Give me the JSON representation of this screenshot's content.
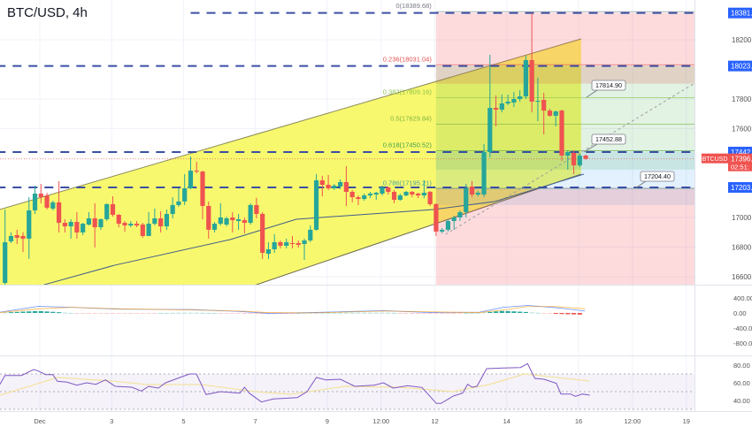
{
  "header": {
    "title": "BTC/USD, 4h"
  },
  "colors": {
    "up": "#26a69a",
    "down": "#ef5350",
    "channel": "#f7f75e",
    "hline": "#3a4fa3",
    "ma": "#3f5d8a",
    "rsi": "#7e57c2",
    "rsi_ma": "#f3e3a0",
    "macd": "#2962ff",
    "signal": "#ff9800"
  },
  "chart_data": {
    "type": "candlestick",
    "symbol_tag": "BTCUSD",
    "interval": "4h",
    "x_ticks": [
      {
        "day": 1,
        "label": "Dec"
      },
      {
        "day": 3,
        "label": "3"
      },
      {
        "day": 5,
        "label": "5"
      },
      {
        "day": 7,
        "label": "7"
      },
      {
        "day": 9,
        "label": "9"
      },
      {
        "day": 10.5,
        "label": "12:00"
      },
      {
        "day": 12,
        "label": "12"
      },
      {
        "day": 14,
        "label": "14"
      },
      {
        "day": 16,
        "label": "16"
      },
      {
        "day": 17.5,
        "label": "12:00"
      },
      {
        "day": 19,
        "label": "19"
      }
    ],
    "price_ticks": [
      "18200.",
      "17800.",
      "17600.",
      "17000.",
      "16800.",
      "16600."
    ],
    "price_tick_values": [
      18200,
      17800,
      17600,
      17000,
      16800,
      16600
    ],
    "ylim": [
      16546,
      18470
    ],
    "candles": [
      [
        16558,
        17054,
        16540,
        16833
      ],
      [
        16839,
        16899,
        16827,
        16875
      ],
      [
        16881,
        16917,
        16821,
        16863
      ],
      [
        16875,
        16899,
        16767,
        16857
      ],
      [
        16857,
        17137,
        16720,
        17048
      ],
      [
        17048,
        17215,
        17024,
        17161
      ],
      [
        17161,
        17227,
        17096,
        17137
      ],
      [
        17149,
        17167,
        17054,
        17066
      ],
      [
        17060,
        17113,
        17048,
        17102
      ],
      [
        17102,
        17245,
        16899,
        16964
      ],
      [
        16964,
        16988,
        16899,
        16940
      ],
      [
        16940,
        16988,
        16857,
        16970
      ],
      [
        16970,
        17036,
        16857,
        16899
      ],
      [
        16899,
        16964,
        16881,
        16958
      ],
      [
        16952,
        17036,
        16946,
        16994
      ],
      [
        16994,
        17096,
        16797,
        16934
      ],
      [
        16934,
        16994,
        16916,
        16988
      ],
      [
        16988,
        17096,
        16976,
        17090
      ],
      [
        17090,
        17143,
        17006,
        17018
      ],
      [
        17018,
        17024,
        16934,
        16958
      ],
      [
        16964,
        16976,
        16904,
        16946
      ],
      [
        16946,
        16976,
        16934,
        16958
      ],
      [
        16958,
        16976,
        16934,
        16946
      ],
      [
        16952,
        16964,
        16863,
        16875
      ],
      [
        16875,
        17036,
        16875,
        16958
      ],
      [
        16958,
        17060,
        16946,
        16994
      ],
      [
        16994,
        17042,
        16899,
        16940
      ],
      [
        16940,
        17054,
        16916,
        17024
      ],
      [
        17024,
        17137,
        16994,
        17084
      ],
      [
        17084,
        17197,
        17072,
        17108
      ],
      [
        17108,
        17293,
        17084,
        17197
      ],
      [
        17197,
        17412,
        17191,
        17316
      ],
      [
        17316,
        17376,
        17298,
        17310
      ],
      [
        17310,
        17316,
        16988,
        17078
      ],
      [
        17078,
        17108,
        16857,
        16917
      ],
      [
        16917,
        16970,
        16899,
        16958
      ],
      [
        16958,
        17096,
        16946,
        17000
      ],
      [
        16952,
        17006,
        16940,
        16994
      ],
      [
        17000,
        17036,
        16899,
        16982
      ],
      [
        16976,
        17024,
        16916,
        16988
      ],
      [
        16982,
        17000,
        16893,
        16964
      ],
      [
        16964,
        17096,
        16952,
        17084
      ],
      [
        17084,
        17133,
        16994,
        17024
      ],
      [
        17024,
        17036,
        16719,
        16761
      ],
      [
        16755,
        16833,
        16719,
        16785
      ],
      [
        16785,
        16887,
        16761,
        16833
      ],
      [
        16833,
        16845,
        16791,
        16809
      ],
      [
        16809,
        16857,
        16791,
        16833
      ],
      [
        16827,
        16875,
        16791,
        16821
      ],
      [
        16827,
        16845,
        16797,
        16815
      ],
      [
        16821,
        16857,
        16713,
        16845
      ],
      [
        16845,
        16946,
        16833,
        16917
      ],
      [
        16917,
        17293,
        16911,
        17251
      ],
      [
        17251,
        17281,
        17143,
        17221
      ],
      [
        17221,
        17287,
        17185,
        17197
      ],
      [
        17197,
        17227,
        17185,
        17215
      ],
      [
        17209,
        17257,
        17191,
        17239
      ],
      [
        17239,
        17346,
        17078,
        17173
      ],
      [
        17173,
        17185,
        17102,
        17137
      ],
      [
        17137,
        17149,
        17084,
        17125
      ],
      [
        17125,
        17161,
        17113,
        17149
      ],
      [
        17149,
        17173,
        17131,
        17161
      ],
      [
        17155,
        17173,
        17119,
        17167
      ],
      [
        17161,
        17215,
        17149,
        17203
      ],
      [
        17203,
        17209,
        17155,
        17173
      ],
      [
        17173,
        17185,
        17096,
        17119
      ],
      [
        17119,
        17161,
        17113,
        17149
      ],
      [
        17149,
        17179,
        17143,
        17173
      ],
      [
        17173,
        17179,
        17137,
        17155
      ],
      [
        17161,
        17167,
        17131,
        17149
      ],
      [
        17149,
        17251,
        17131,
        17167
      ],
      [
        17173,
        17179,
        17078,
        17090
      ],
      [
        17090,
        17096,
        16875,
        16905
      ],
      [
        16905,
        16929,
        16893,
        16917
      ],
      [
        16917,
        16988,
        16905,
        16976
      ],
      [
        16976,
        17012,
        16916,
        17000
      ],
      [
        17000,
        17048,
        16976,
        17036
      ],
      [
        17036,
        17227,
        17000,
        17197
      ],
      [
        17209,
        17245,
        17137,
        17155
      ],
      [
        17155,
        17179,
        17143,
        17167
      ],
      [
        17155,
        17496,
        17137,
        17442
      ],
      [
        17442,
        18099,
        17406,
        17740
      ],
      [
        17740,
        17824,
        17615,
        17728
      ],
      [
        17728,
        17830,
        17710,
        17770
      ],
      [
        17770,
        17830,
        17758,
        17782
      ],
      [
        17776,
        17848,
        17746,
        17800
      ],
      [
        17800,
        17860,
        17782,
        17818
      ],
      [
        17818,
        18093,
        17800,
        18063
      ],
      [
        18063,
        18379,
        17710,
        17782
      ],
      [
        17782,
        17943,
        17651,
        17788
      ],
      [
        17794,
        17842,
        17561,
        17722
      ],
      [
        17722,
        17734,
        17680,
        17687
      ],
      [
        17687,
        17722,
        17615,
        17716
      ],
      [
        17722,
        17728,
        17382,
        17418
      ],
      [
        17418,
        17454,
        17322,
        17442
      ],
      [
        17436,
        17454,
        17292,
        17352
      ],
      [
        17352,
        17430,
        17340,
        17418
      ],
      [
        17418,
        17424,
        17390,
        17396
      ]
    ],
    "moving_average": [
      [
        1.12,
        16546
      ],
      [
        3.09,
        16678
      ],
      [
        6.3,
        16851
      ],
      [
        8.14,
        16988
      ],
      [
        11.96,
        17054
      ],
      [
        13.68,
        17108
      ],
      [
        16.15,
        17293
      ]
    ],
    "channel": {
      "upper": [
        [
          -0.11,
          17054
        ],
        [
          16.07,
          18206
        ]
      ],
      "lower": [
        [
          -0.11,
          15956
        ],
        [
          16.07,
          17293
        ]
      ]
    },
    "horizontal_levels": [
      {
        "price": 18381,
        "tag": "18381.",
        "from_day": 5.2
      },
      {
        "price": 18023,
        "tag": "18023.",
        "from_day": -0.2
      },
      {
        "price": 17442,
        "tag": "17442.",
        "from_day": -0.2
      },
      {
        "price": 17203,
        "tag": "17203.",
        "from_day": -0.2
      }
    ],
    "fibonacci": [
      {
        "label": "0(18389.68)",
        "price": 18389.68,
        "color": "#787b86"
      },
      {
        "label": "0.236(18031.04)",
        "price": 18031.04,
        "color": "#e0524f"
      },
      {
        "label": "0.382(17809.16)",
        "price": 17809.16,
        "color": "#8bc34a"
      },
      {
        "label": "0.5(17629.84)",
        "price": 17629.84,
        "color": "#7cb342"
      },
      {
        "label": "0.618(17450.52)",
        "price": 17450.52,
        "color": "#43a047"
      },
      {
        "label": "0.786(17195.21)",
        "price": 17195.21,
        "color": "#4aa3a0"
      }
    ],
    "position_zones": [
      {
        "top": 18381,
        "bottom": 18023,
        "color": "rgba(242,54,69,0.18)"
      },
      {
        "top": 18023,
        "bottom": 17442,
        "color": "rgba(76,175,80,0.16)"
      },
      {
        "top": 17442,
        "bottom": 17203,
        "color": "rgba(33,150,243,0.13)"
      },
      {
        "top": 17203,
        "bottom": 16546,
        "color": "rgba(242,54,69,0.18)"
      }
    ],
    "position_days": [
      12.03,
      20.09
    ],
    "target_line": [
      [
        12.3,
        16887
      ],
      [
        20.09,
        18033
      ]
    ],
    "callouts": [
      "17814.90",
      "17452.88",
      "17204.40"
    ],
    "current_price": {
      "price": 17396,
      "text": "17396.",
      "countdown": "02:51:"
    },
    "macd": {
      "ticks": [
        "400.00",
        "0.00",
        "-400.0",
        "-800.0"
      ],
      "tick_values": [
        400,
        0,
        -400,
        -800
      ],
      "macd_line": [
        [
          -0.11,
          20
        ],
        [
          0.96,
          176
        ],
        [
          1.89,
          150
        ],
        [
          3.23,
          100
        ],
        [
          5.23,
          90
        ],
        [
          6.57,
          40
        ],
        [
          7.37,
          -10
        ],
        [
          8.57,
          10
        ],
        [
          10.57,
          60
        ],
        [
          11.91,
          10
        ],
        [
          13.24,
          20
        ],
        [
          13.91,
          150
        ],
        [
          14.58,
          200
        ],
        [
          15.38,
          140
        ],
        [
          16.18,
          50
        ]
      ],
      "signal_line": [
        [
          -0.11,
          10
        ],
        [
          0.96,
          110
        ],
        [
          1.89,
          150
        ],
        [
          3.23,
          110
        ],
        [
          5.23,
          80
        ],
        [
          6.57,
          50
        ],
        [
          7.37,
          10
        ],
        [
          8.57,
          0
        ],
        [
          10.57,
          50
        ],
        [
          11.91,
          30
        ],
        [
          13.24,
          10
        ],
        [
          13.91,
          80
        ],
        [
          14.58,
          170
        ],
        [
          15.38,
          170
        ],
        [
          16.18,
          110
        ]
      ]
    },
    "rsi": {
      "ticks": [
        "80.00",
        "60.00",
        "40.00"
      ],
      "tick_values": [
        80,
        60,
        40
      ],
      "band": [
        30,
        70
      ],
      "line": [
        [
          -0.11,
          58.3
        ],
        [
          0.03,
          68.3
        ],
        [
          0.49,
          68.3
        ],
        [
          0.83,
          75
        ],
        [
          0.96,
          73.3
        ],
        [
          1.16,
          69.3
        ],
        [
          1.36,
          69.3
        ],
        [
          1.49,
          61.7
        ],
        [
          1.76,
          60.7
        ],
        [
          2.03,
          57.3
        ],
        [
          2.3,
          60
        ],
        [
          2.56,
          58.3
        ],
        [
          2.83,
          63.3
        ],
        [
          3.1,
          56
        ],
        [
          3.56,
          55
        ],
        [
          3.83,
          50.7
        ],
        [
          4.03,
          56
        ],
        [
          4.3,
          54
        ],
        [
          4.5,
          60
        ],
        [
          4.9,
          66
        ],
        [
          5.17,
          70
        ],
        [
          5.36,
          70
        ],
        [
          5.63,
          46.7
        ],
        [
          6.03,
          50
        ],
        [
          6.57,
          48.3
        ],
        [
          6.7,
          55
        ],
        [
          6.83,
          48.3
        ],
        [
          7.17,
          38.3
        ],
        [
          7.5,
          41.7
        ],
        [
          8.17,
          43.3
        ],
        [
          8.44,
          50
        ],
        [
          8.7,
          66
        ],
        [
          8.97,
          63.3
        ],
        [
          9.37,
          64
        ],
        [
          9.77,
          56
        ],
        [
          10.3,
          57.3
        ],
        [
          10.57,
          60
        ],
        [
          10.84,
          54
        ],
        [
          11.24,
          56.7
        ],
        [
          11.64,
          54.7
        ],
        [
          12.04,
          36.7
        ],
        [
          12.17,
          36.7
        ],
        [
          12.51,
          45
        ],
        [
          12.77,
          48.3
        ],
        [
          12.91,
          58.3
        ],
        [
          13.04,
          55
        ],
        [
          13.17,
          56
        ],
        [
          13.44,
          76
        ],
        [
          13.91,
          76.7
        ],
        [
          14.38,
          77.3
        ],
        [
          14.58,
          81.7
        ],
        [
          14.78,
          65
        ],
        [
          15.04,
          64
        ],
        [
          15.38,
          59.3
        ],
        [
          15.51,
          47.3
        ],
        [
          15.78,
          47.3
        ],
        [
          15.91,
          44.7
        ],
        [
          16.11,
          47.3
        ],
        [
          16.31,
          46
        ]
      ],
      "ma_line": [
        [
          -0.11,
          46
        ],
        [
          1.5,
          66
        ],
        [
          3,
          62
        ],
        [
          4,
          58
        ],
        [
          5.5,
          58
        ],
        [
          7,
          50
        ],
        [
          8,
          47
        ],
        [
          9.5,
          56
        ],
        [
          11,
          55
        ],
        [
          12.5,
          50
        ],
        [
          13.5,
          58
        ],
        [
          14.5,
          70
        ],
        [
          16.3,
          62
        ]
      ]
    }
  }
}
